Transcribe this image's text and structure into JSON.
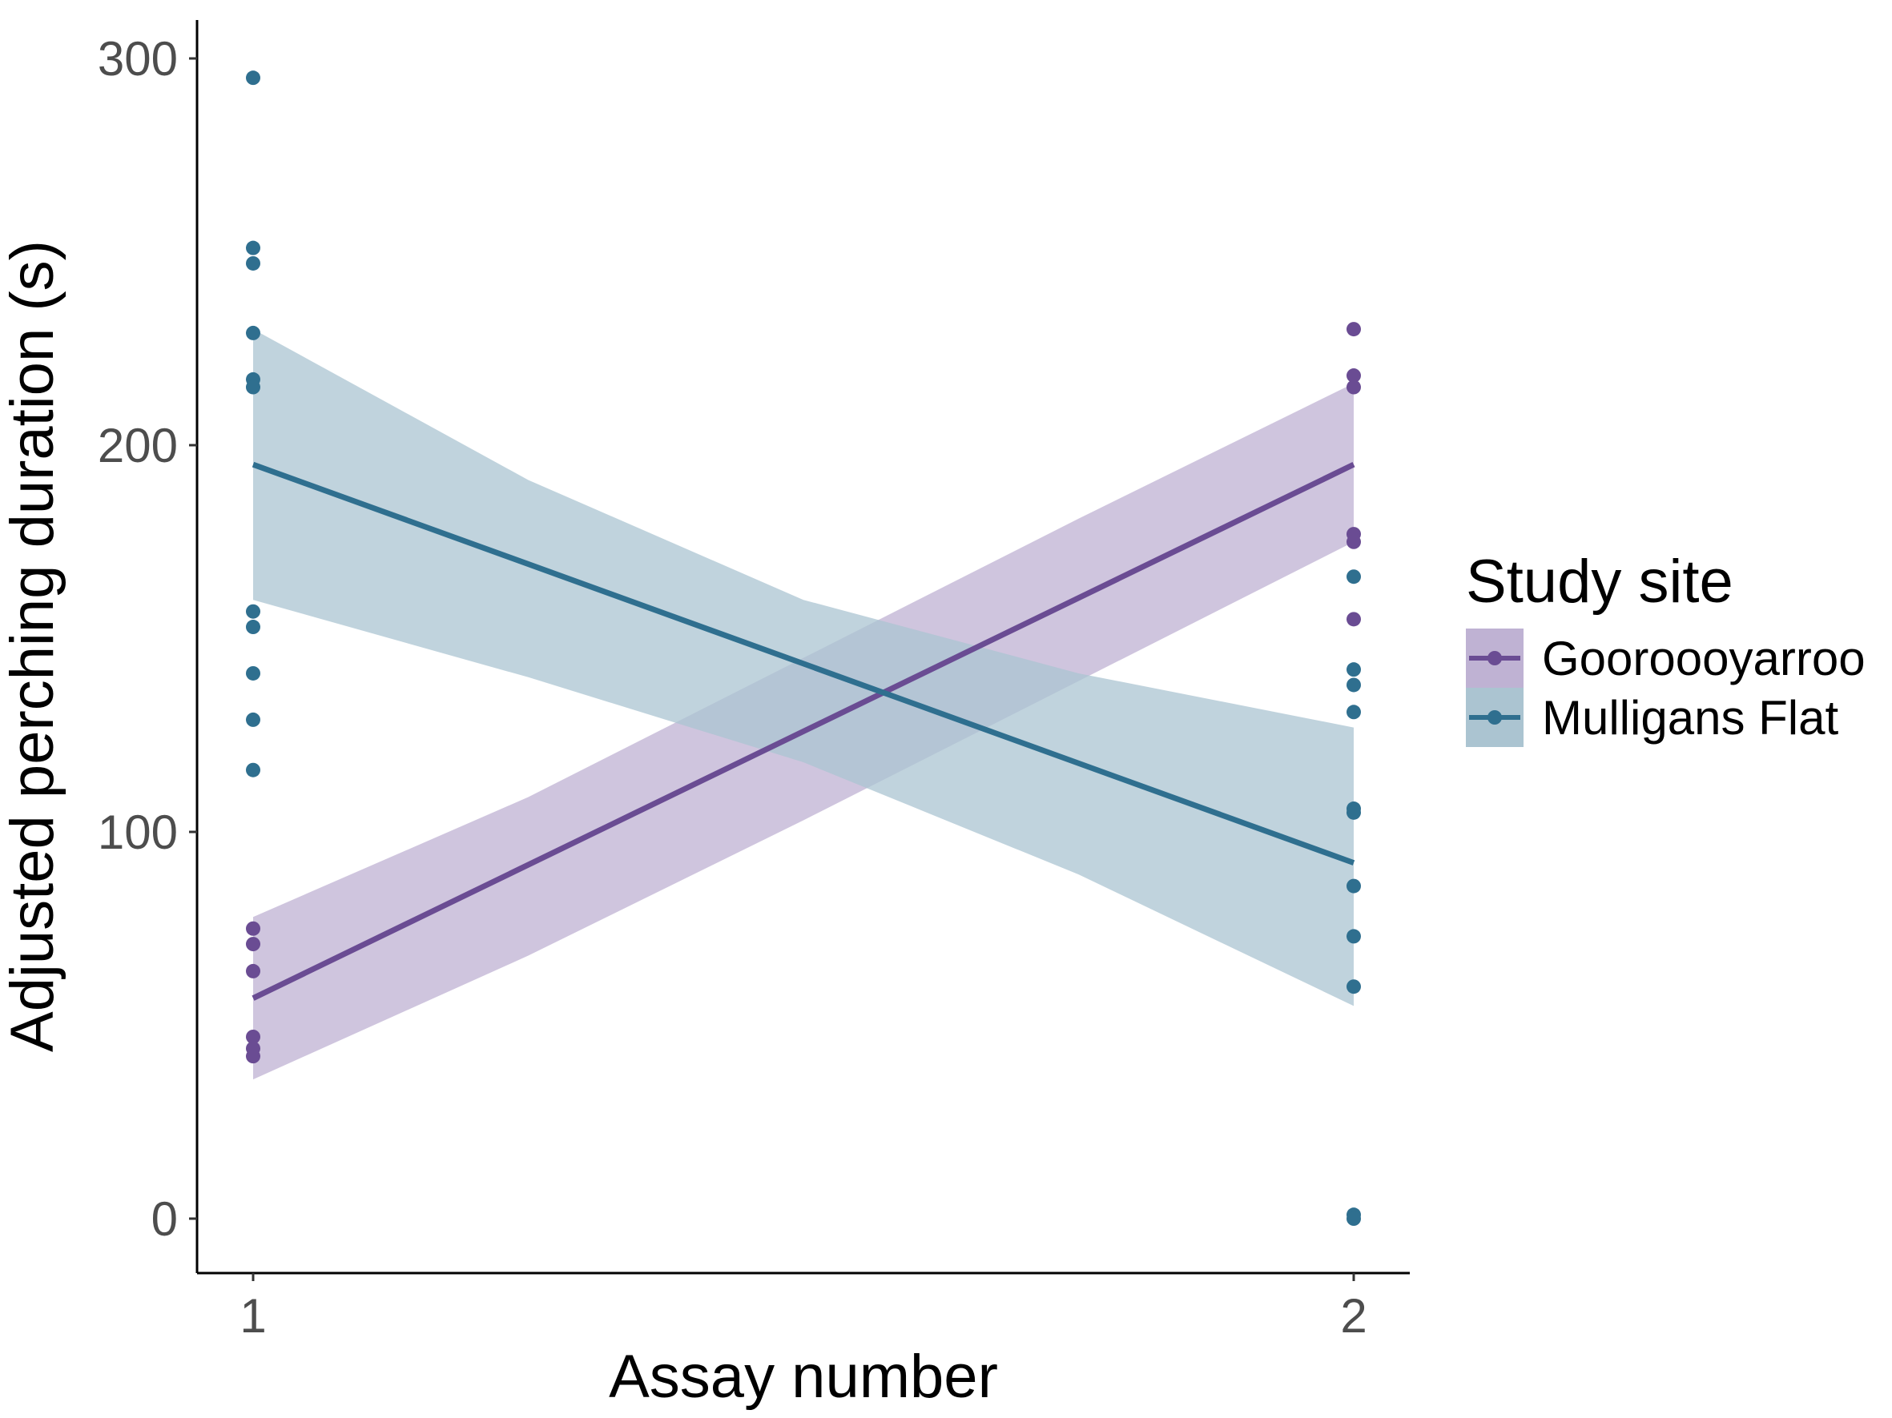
{
  "chart_data": {
    "type": "scatter",
    "title": "",
    "xlabel": "Assay number",
    "ylabel": "Adjusted perching duration (s)",
    "xlim": [
      0.95,
      2.05
    ],
    "ylim": [
      -15,
      310
    ],
    "x_ticks": [
      1,
      2
    ],
    "y_ticks": [
      0,
      100,
      200,
      300
    ],
    "grid": false,
    "legend": {
      "title": "Study site",
      "position": "right"
    },
    "series": [
      {
        "name": "Gooroooyarroo",
        "color": "#6a4c93",
        "band_color": "#bfb2d3",
        "fit_line": {
          "x": [
            1,
            2
          ],
          "y": [
            57,
            195
          ]
        },
        "ci_band": {
          "x": [
            1,
            1.25,
            1.5,
            1.75,
            2
          ],
          "lower": [
            36,
            68,
            103,
            139,
            175
          ],
          "upper": [
            78,
            109,
            145,
            181,
            216
          ]
        },
        "points": [
          {
            "x": 1,
            "y": 75
          },
          {
            "x": 1,
            "y": 71
          },
          {
            "x": 1,
            "y": 64
          },
          {
            "x": 1,
            "y": 47
          },
          {
            "x": 1,
            "y": 44
          },
          {
            "x": 1,
            "y": 42
          },
          {
            "x": 2,
            "y": 230
          },
          {
            "x": 2,
            "y": 218
          },
          {
            "x": 2,
            "y": 215
          },
          {
            "x": 2,
            "y": 177
          },
          {
            "x": 2,
            "y": 175
          },
          {
            "x": 2,
            "y": 155
          }
        ]
      },
      {
        "name": "Mulligans Flat",
        "color": "#2f6f8f",
        "band_color": "#abc4d1",
        "fit_line": {
          "x": [
            1,
            2
          ],
          "y": [
            195,
            92
          ]
        },
        "ci_band": {
          "x": [
            1,
            1.25,
            1.5,
            1.75,
            2
          ],
          "lower": [
            160,
            140,
            118,
            89,
            55
          ],
          "upper": [
            230,
            191,
            160,
            141,
            127
          ]
        },
        "points": [
          {
            "x": 1,
            "y": 295
          },
          {
            "x": 1,
            "y": 251
          },
          {
            "x": 1,
            "y": 247
          },
          {
            "x": 1,
            "y": 229
          },
          {
            "x": 1,
            "y": 217
          },
          {
            "x": 1,
            "y": 215
          },
          {
            "x": 1,
            "y": 157
          },
          {
            "x": 1,
            "y": 153
          },
          {
            "x": 1,
            "y": 141
          },
          {
            "x": 1,
            "y": 129
          },
          {
            "x": 1,
            "y": 116
          },
          {
            "x": 2,
            "y": 166
          },
          {
            "x": 2,
            "y": 142
          },
          {
            "x": 2,
            "y": 138
          },
          {
            "x": 2,
            "y": 131
          },
          {
            "x": 2,
            "y": 106
          },
          {
            "x": 2,
            "y": 105
          },
          {
            "x": 2,
            "y": 86
          },
          {
            "x": 2,
            "y": 73
          },
          {
            "x": 2,
            "y": 60
          },
          {
            "x": 2,
            "y": 1
          },
          {
            "x": 2,
            "y": 0
          }
        ]
      }
    ]
  }
}
